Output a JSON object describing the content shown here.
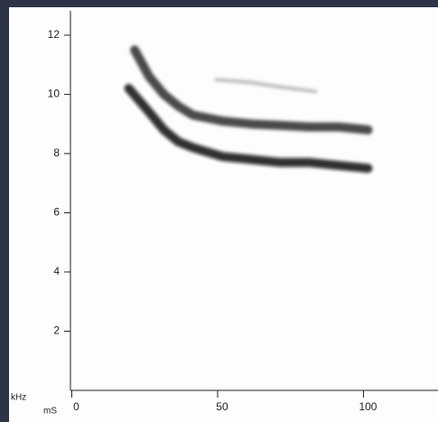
{
  "chart_data": {
    "type": "spectrogram",
    "x_label": "mS",
    "y_label": "kHz",
    "xlim": [
      -2,
      124
    ],
    "ylim": [
      0,
      12.7
    ],
    "xticks": [
      0,
      50,
      100
    ],
    "yticks": [
      2,
      4,
      6,
      8,
      10,
      12
    ],
    "series": [
      {
        "color": "#2a2a2a",
        "x": [
          20,
          25,
          30,
          35,
          40,
          50,
          60,
          70,
          80,
          90,
          100
        ],
        "values": [
          11.5,
          10.6,
          10.0,
          9.6,
          9.3,
          9.1,
          9.0,
          8.95,
          8.9,
          8.9,
          8.8
        ]
      },
      {
        "color": "#111111",
        "x": [
          18,
          25,
          30,
          35,
          40,
          50,
          60,
          70,
          80,
          90,
          100
        ],
        "values": [
          10.2,
          9.4,
          8.8,
          8.4,
          8.2,
          7.9,
          7.8,
          7.7,
          7.7,
          7.6,
          7.5
        ]
      },
      {
        "color": "#b0b0b0",
        "x": [
          48,
          60,
          70,
          82
        ],
        "values": [
          10.5,
          10.4,
          10.25,
          10.1
        ]
      }
    ]
  }
}
